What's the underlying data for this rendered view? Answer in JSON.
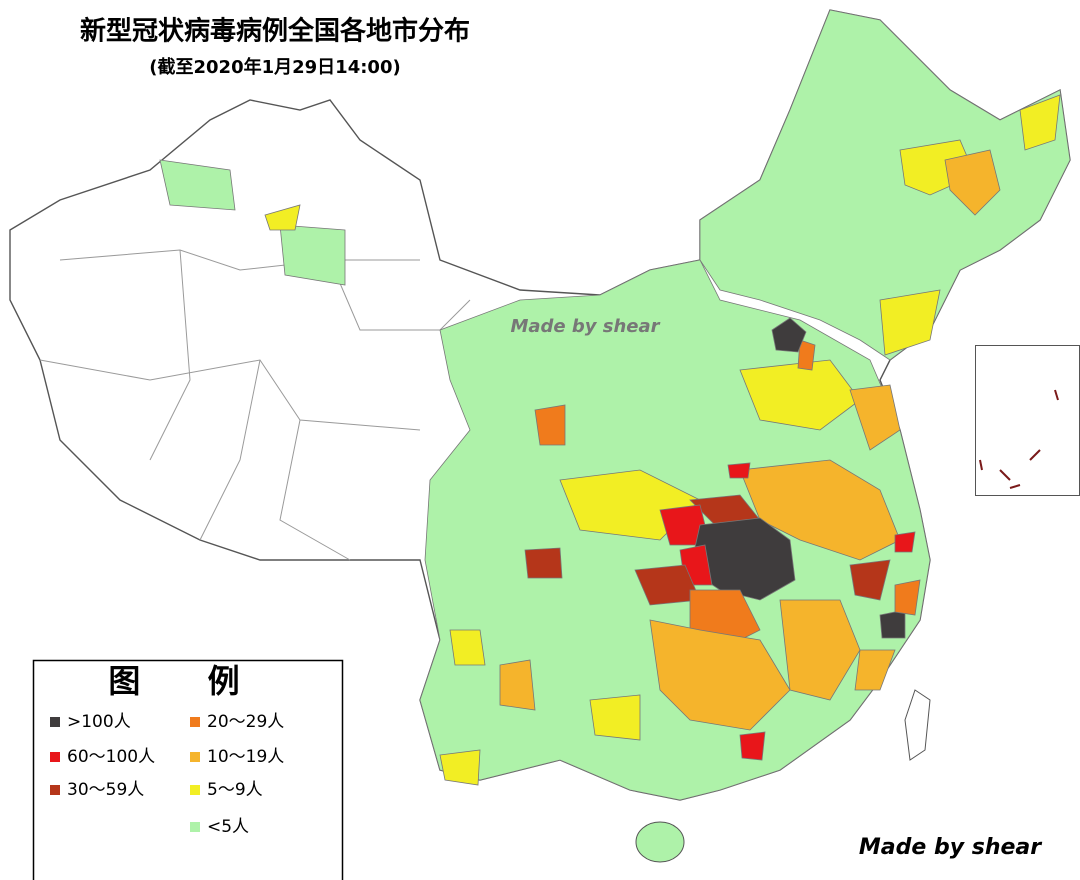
{
  "title": "新型冠状病毒病例全国各地市分布",
  "subtitle": "(截至2020年1月29日14:00)",
  "watermark_center": "Made by shear",
  "watermark_corner": "Made by shear",
  "legend": {
    "title": "图 例",
    "items": [
      {
        "label": ">100人",
        "color": "#3f3c3d"
      },
      {
        "label": "60～100人",
        "color": "#e8161a"
      },
      {
        "label": "30～59人",
        "color": "#b5361a"
      },
      {
        "label": "20～29人",
        "color": "#f07b1c"
      },
      {
        "label": "10～19人",
        "color": "#f5b42c"
      },
      {
        "label": "5～9人",
        "color": "#f2ee24"
      },
      {
        "label": "<5人",
        "color": "#aef2a9"
      }
    ]
  }
}
